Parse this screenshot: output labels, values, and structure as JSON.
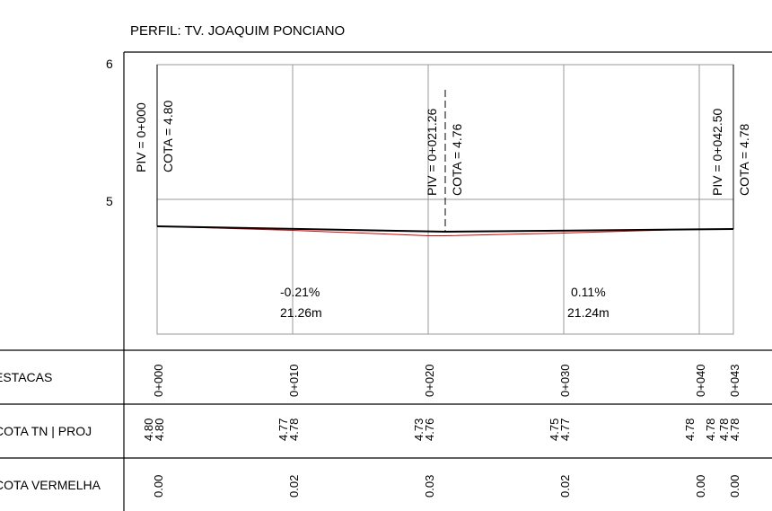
{
  "title": "PERFIL: TV. JOAQUIM PONCIANO",
  "y_ticks": [
    "6",
    "5"
  ],
  "colors": {
    "terrain": "#e00000",
    "project": "#000000",
    "grid": "#9a9a9a",
    "frame": "#000000"
  },
  "piv_labels": [
    {
      "piv": "PIV = 0+000",
      "cota": "COTA = 4.80"
    },
    {
      "piv": "PIV = 0+021.26",
      "cota": "COTA = 4.76"
    },
    {
      "piv": "PIV = 0+042.50",
      "cota": "COTA = 4.78"
    }
  ],
  "grades": [
    {
      "slope": "-0.21%",
      "length": "21.26m"
    },
    {
      "slope": "0.11%",
      "length": "21.24m"
    }
  ],
  "table": {
    "rows": [
      "ESTACAS",
      "COTA TN | PROJ",
      "COTA VERMELHA"
    ],
    "estacas": [
      "0+000",
      "0+010",
      "0+020",
      "0+030",
      "0+040",
      "0+043"
    ],
    "cota_tn": [
      "4.80",
      "4.77",
      "4.73",
      "4.75",
      "4.78",
      "4.78"
    ],
    "cota_proj": [
      "4.80",
      "4.78",
      "4.76",
      "4.77",
      "4.78",
      "4.78"
    ],
    "cota_vermelha": [
      "0.00",
      "0.02",
      "0.03",
      "0.02",
      "0.00",
      "0.00"
    ]
  },
  "chart_data": {
    "type": "line",
    "title": "PERFIL: TV. JOAQUIM PONCIANO",
    "xlabel": "",
    "ylabel": "",
    "ylim": [
      4,
      6
    ],
    "xlim": [
      0,
      42.5
    ],
    "series": [
      {
        "x": [
          0,
          10,
          20,
          21.26,
          30,
          40,
          42.5
        ],
        "values": [
          4.8,
          4.77,
          4.73,
          4.73,
          4.75,
          4.78,
          4.78
        ]
      },
      {
        "x": [
          0,
          21.26,
          42.5
        ],
        "values": [
          4.8,
          4.76,
          4.78
        ]
      }
    ]
  }
}
